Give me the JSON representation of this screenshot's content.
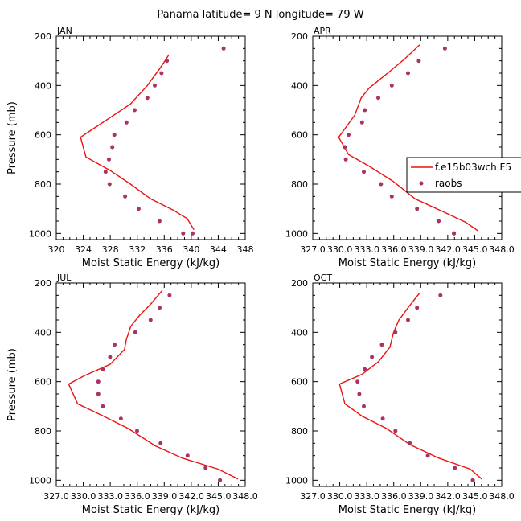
{
  "title": "Panama  latitude= 9 N longitude= 79 W",
  "legend": {
    "model_label": "f.e15b03wch.F5",
    "obs_label": "raobs"
  },
  "colors": {
    "model_line": "#ee1111",
    "obs_marker": "#aa3366",
    "axis": "#000000"
  },
  "chart_data": [
    {
      "type": "line",
      "panel": "JAN",
      "xlabel": "Moist Static Energy (kJ/kg)",
      "ylabel": "Pressure (mb)",
      "xlim": [
        320,
        348
      ],
      "ylim": [
        1025,
        200
      ],
      "xticks": [
        320,
        324,
        328,
        332,
        336,
        340,
        344,
        348
      ],
      "xticklabels": [
        "320",
        "324",
        "328",
        "332",
        "336",
        "340",
        "344",
        "348"
      ],
      "yticks": [
        200,
        400,
        600,
        800,
        1000
      ],
      "yticklabels": [
        "200",
        "400",
        "600",
        "800",
        "1000"
      ],
      "series": [
        {
          "name": "f.e15b03wch.F5",
          "kind": "line",
          "x": [
            336.7,
            335.5,
            333.5,
            331.0,
            328.0,
            325.5,
            323.6,
            324.4,
            328.0,
            331.0,
            334.0,
            337.3,
            339.4,
            340.4
          ],
          "y": [
            275,
            325,
            400,
            475,
            530,
            575,
            610,
            690,
            745,
            800,
            860,
            905,
            940,
            985
          ]
        },
        {
          "name": "raobs",
          "kind": "scatter",
          "x": [
            344.8,
            336.4,
            335.6,
            334.6,
            333.5,
            331.6,
            330.4,
            328.6,
            328.3,
            327.8,
            327.3,
            327.9,
            330.2,
            332.2,
            335.3,
            338.8,
            340.2
          ],
          "y": [
            250,
            300,
            350,
            400,
            450,
            500,
            550,
            600,
            650,
            700,
            750,
            800,
            850,
            900,
            950,
            1000,
            1000
          ]
        }
      ]
    },
    {
      "type": "line",
      "panel": "APR",
      "xlabel": "Moist Static Energy (kJ/kg)",
      "ylabel": "Pressure (mb)",
      "xlim": [
        327.03,
        348.0
      ],
      "ylim": [
        1025,
        200
      ],
      "xticks": [
        327.03,
        330.03,
        333.03,
        336.03,
        339.03,
        342.03,
        345.03,
        348.0
      ],
      "xticklabels": [
        "327.0",
        "330.0",
        "333.0",
        "336.0",
        "339.0",
        "342.0",
        "345.0",
        "348.0"
      ],
      "yticks": [
        200,
        400,
        600,
        800,
        1000
      ],
      "yticklabels": [
        "200",
        "400",
        "600",
        "800",
        "1000"
      ],
      "series": [
        {
          "name": "f.e15b03wch.F5",
          "kind": "line",
          "x": [
            338.9,
            337.3,
            335.5,
            333.3,
            332.4,
            331.7,
            329.9,
            331.0,
            333.4,
            336.0,
            338.4,
            341.4,
            344.0,
            345.4
          ],
          "y": [
            235,
            290,
            345,
            410,
            450,
            520,
            610,
            680,
            730,
            790,
            860,
            910,
            955,
            990
          ]
        },
        {
          "name": "raobs",
          "kind": "scatter",
          "x": [
            341.7,
            338.8,
            337.6,
            335.8,
            334.3,
            332.8,
            332.5,
            331.0,
            330.6,
            330.7,
            332.7,
            334.6,
            335.8,
            338.6,
            341.0,
            342.7,
            342.7
          ],
          "y": [
            250,
            300,
            350,
            400,
            450,
            500,
            550,
            600,
            650,
            700,
            750,
            800,
            850,
            900,
            950,
            1000,
            1000
          ]
        }
      ]
    },
    {
      "type": "line",
      "panel": "JUL",
      "xlabel": "Moist Static Energy (kJ/kg)",
      "ylabel": "Pressure (mb)",
      "xlim": [
        327.03,
        348.0
      ],
      "ylim": [
        1025,
        200
      ],
      "xticks": [
        327.03,
        330.03,
        333.03,
        336.03,
        339.03,
        342.03,
        345.03,
        348.0
      ],
      "xticklabels": [
        "327.0",
        "330.0",
        "333.0",
        "336.0",
        "339.0",
        "342.0",
        "345.0",
        "348.0"
      ],
      "yticks": [
        200,
        400,
        600,
        800,
        1000
      ],
      "yticklabels": [
        "200",
        "400",
        "600",
        "800",
        "1000"
      ],
      "series": [
        {
          "name": "f.e15b03wch.F5",
          "kind": "line",
          "x": [
            338.8,
            337.4,
            336.3,
            335.3,
            334.8,
            334.6,
            333.0,
            330.2,
            328.4,
            329.4,
            332.0,
            335.0,
            338.0,
            341.0,
            345.0,
            347.2
          ],
          "y": [
            230,
            290,
            330,
            375,
            430,
            470,
            530,
            575,
            610,
            690,
            735,
            790,
            860,
            910,
            955,
            995
          ]
        },
        {
          "name": "raobs",
          "kind": "scatter",
          "x": [
            339.6,
            338.5,
            337.5,
            335.8,
            333.5,
            333.0,
            332.2,
            331.7,
            331.7,
            332.2,
            334.2,
            336.0,
            338.6,
            341.6,
            343.6,
            345.2,
            345.2
          ],
          "y": [
            250,
            300,
            350,
            400,
            450,
            500,
            550,
            600,
            650,
            700,
            750,
            800,
            850,
            900,
            950,
            1000,
            1000
          ]
        }
      ]
    },
    {
      "type": "line",
      "panel": "OCT",
      "xlabel": "Moist Static Energy (kJ/kg)",
      "ylabel": "Pressure (mb)",
      "xlim": [
        327.03,
        348.0
      ],
      "ylim": [
        1025,
        200
      ],
      "xticks": [
        327.03,
        330.03,
        333.03,
        336.03,
        339.03,
        342.03,
        345.03,
        348.0
      ],
      "xticklabels": [
        "327.0",
        "330.0",
        "333.0",
        "336.0",
        "339.0",
        "342.0",
        "345.0",
        "348.0"
      ],
      "yticks": [
        200,
        400,
        600,
        800,
        1000
      ],
      "yticklabels": [
        "200",
        "400",
        "600",
        "800",
        "1000"
      ],
      "series": [
        {
          "name": "f.e15b03wch.F5",
          "kind": "line",
          "x": [
            338.9,
            337.6,
            336.6,
            336.0,
            335.6,
            334.3,
            332.5,
            330.0,
            330.6,
            332.5,
            335.2,
            337.8,
            341.0,
            344.5,
            345.8
          ],
          "y": [
            240,
            300,
            350,
            400,
            460,
            520,
            570,
            610,
            690,
            740,
            790,
            855,
            910,
            955,
            995
          ]
        },
        {
          "name": "raobs",
          "kind": "scatter",
          "x": [
            341.2,
            338.6,
            337.6,
            336.2,
            334.7,
            333.6,
            332.8,
            332.0,
            332.2,
            332.7,
            334.8,
            336.2,
            337.8,
            339.8,
            342.8,
            344.8,
            344.8
          ],
          "y": [
            250,
            300,
            350,
            400,
            450,
            500,
            550,
            600,
            650,
            700,
            750,
            800,
            850,
            900,
            950,
            1000,
            1000
          ]
        }
      ]
    }
  ]
}
